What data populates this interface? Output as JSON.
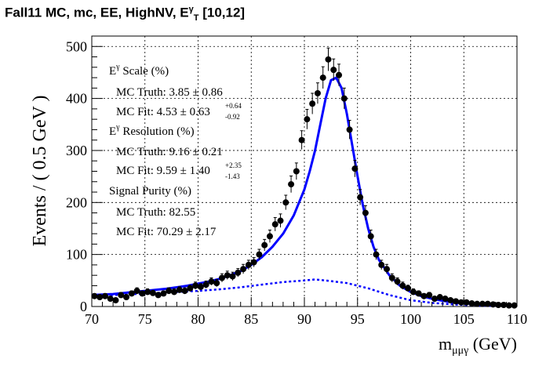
{
  "title": {
    "prefix": "Fall11 MC, mc, EE, HighNV, E",
    "sup": "γ",
    "sub": "T",
    "suffix": " [10,12]"
  },
  "axes": {
    "ylabel": "Events / ( 0.5 GeV )",
    "xlabel_base": "m",
    "xlabel_sub": "μμγ",
    "xlabel_unit": " (GeV)"
  },
  "legend": {
    "scale_header_base": "E",
    "scale_header_sup": "γ",
    "scale_header_rest": " Scale (%)",
    "scale_truth": "MC Truth: 3.85 ± 0.86",
    "scale_fit": "MC Fit: 4.53 ± 0.63",
    "scale_fit_up": "+0.64",
    "scale_fit_down": "-0.92",
    "res_header_base": "E",
    "res_header_sup": "γ",
    "res_header_rest": " Resolution (%)",
    "res_truth": "MC Truth: 9.16 ± 0.21",
    "res_fit": "MC Fit: 9.59 ± 1.40",
    "res_fit_up": "+2.35",
    "res_fit_down": "-1.43",
    "purity_header": "Signal Purity (%)",
    "purity_truth": "MC Truth: 82.55",
    "purity_fit": "MC Fit: 70.29 ± 2.17"
  },
  "chart_data": {
    "type": "scatter",
    "xlim": [
      70,
      110
    ],
    "ylim": [
      0,
      520
    ],
    "xticks": [
      "70",
      "75",
      "80",
      "85",
      "90",
      "95",
      "100",
      "105",
      "110"
    ],
    "yticks": [
      "0",
      "100",
      "200",
      "300",
      "400",
      "500"
    ],
    "grid": true,
    "colors": {
      "points": "#000000",
      "fit": "#0000ff",
      "background_fit": "#0000ff"
    },
    "series": [
      {
        "kind": "points",
        "x": [
          70.25,
          70.75,
          71.25,
          71.75,
          72.25,
          72.75,
          73.25,
          73.75,
          74.25,
          74.75,
          75.25,
          75.75,
          76.25,
          76.75,
          77.25,
          77.75,
          78.25,
          78.75,
          79.25,
          79.75,
          80.25,
          80.75,
          81.25,
          81.75,
          82.25,
          82.75,
          83.25,
          83.75,
          84.25,
          84.75,
          85.25,
          85.75,
          86.25,
          86.75,
          87.25,
          87.75,
          88.25,
          88.75,
          89.25,
          89.75,
          90.25,
          90.75,
          91.25,
          91.75,
          92.25,
          92.75,
          93.25,
          93.75,
          94.25,
          94.75,
          95.25,
          95.75,
          96.25,
          96.75,
          97.25,
          97.75,
          98.25,
          98.75,
          99.25,
          99.75,
          100.25,
          100.75,
          101.25,
          101.75,
          102.25,
          102.75,
          103.25,
          103.75,
          104.25,
          104.75,
          105.25,
          105.75,
          106.25,
          106.75,
          107.25,
          107.75,
          108.25,
          108.75,
          109.25,
          109.75
        ],
        "y": [
          20,
          18,
          20,
          15,
          12,
          22,
          18,
          25,
          30,
          25,
          28,
          26,
          22,
          25,
          30,
          28,
          32,
          30,
          35,
          40,
          38,
          42,
          48,
          45,
          55,
          60,
          58,
          65,
          72,
          80,
          85,
          100,
          118,
          135,
          158,
          165,
          200,
          235,
          260,
          320,
          360,
          390,
          410,
          440,
          475,
          455,
          445,
          400,
          340,
          265,
          210,
          180,
          135,
          100,
          80,
          72,
          55,
          48,
          40,
          35,
          28,
          25,
          20,
          22,
          15,
          18,
          15,
          12,
          10,
          8,
          8,
          6,
          5,
          5,
          5,
          4,
          3,
          3,
          2,
          2
        ],
        "err": [
          5,
          5,
          5,
          4,
          4,
          5,
          5,
          5,
          6,
          5,
          6,
          5,
          5,
          5,
          6,
          6,
          6,
          6,
          6,
          7,
          6,
          7,
          7,
          7,
          8,
          8,
          8,
          8,
          9,
          9,
          9,
          10,
          11,
          12,
          13,
          13,
          14,
          16,
          16,
          18,
          19,
          20,
          20,
          21,
          22,
          21,
          21,
          20,
          18,
          16,
          15,
          14,
          12,
          10,
          9,
          9,
          8,
          7,
          7,
          6,
          6,
          5,
          5,
          5,
          4,
          4,
          4,
          4,
          3,
          3,
          3,
          3,
          2,
          2,
          2,
          2,
          2,
          2,
          2,
          2
        ]
      },
      {
        "kind": "fit",
        "x": [
          70,
          71,
          72,
          73,
          74,
          75,
          76,
          77,
          78,
          79,
          80,
          81,
          82,
          83,
          84,
          85,
          86,
          87,
          88,
          89,
          90,
          90.5,
          91,
          91.5,
          92,
          92.5,
          93,
          93.5,
          94,
          94.5,
          95,
          95.5,
          96,
          96.5,
          97,
          98,
          99,
          100,
          101,
          102,
          103,
          104,
          105,
          106,
          107,
          108,
          109,
          110
        ],
        "y": [
          22,
          23,
          24,
          26,
          28,
          30,
          32,
          34,
          37,
          40,
          44,
          48,
          53,
          60,
          68,
          80,
          95,
          115,
          140,
          175,
          225,
          260,
          300,
          350,
          400,
          435,
          440,
          420,
          370,
          310,
          250,
          195,
          150,
          115,
          90,
          60,
          40,
          28,
          20,
          15,
          11,
          8,
          6,
          5,
          4,
          3,
          3,
          2
        ]
      },
      {
        "kind": "background",
        "x": [
          70,
          72,
          74,
          76,
          78,
          80,
          82,
          84,
          86,
          88,
          90,
          91,
          92,
          94,
          96,
          98,
          100,
          102,
          104,
          106,
          108,
          110
        ],
        "y": [
          20,
          22,
          24,
          26,
          28,
          30,
          33,
          37,
          42,
          47,
          50,
          52,
          50,
          45,
          35,
          22,
          12,
          7,
          4,
          2,
          1,
          1
        ]
      }
    ]
  }
}
